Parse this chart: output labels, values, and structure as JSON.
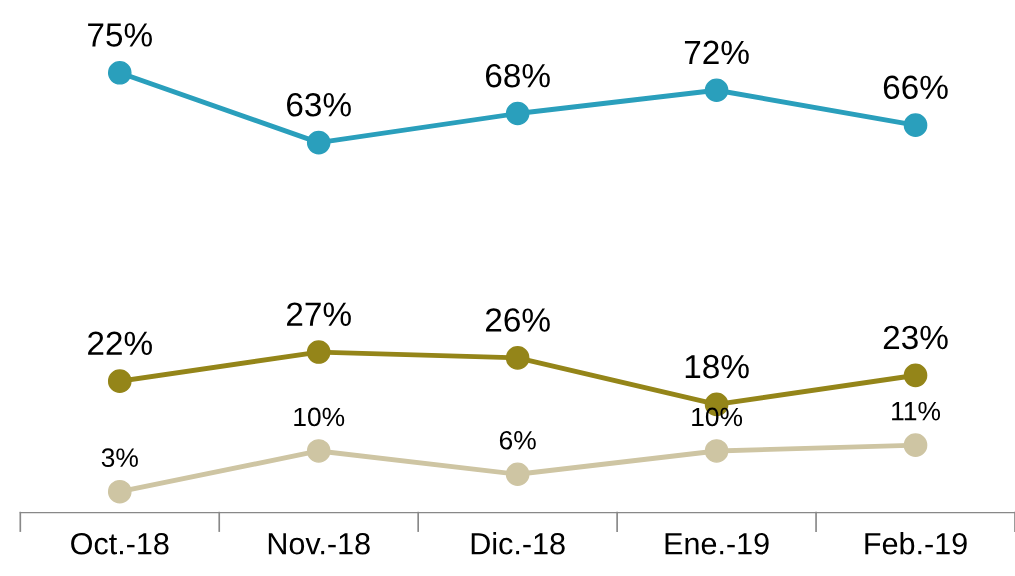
{
  "chart_data": {
    "type": "line",
    "categories": [
      "Oct.-18",
      "Nov.-18",
      "Dic.-18",
      "Ene.-19",
      "Feb.-19"
    ],
    "series": [
      {
        "color": "#2a9fbc",
        "values": [
          75,
          63,
          68,
          72,
          66
        ],
        "value_labels": [
          "75%",
          "63%",
          "68%",
          "72%",
          "66%"
        ]
      },
      {
        "color": "#948519",
        "values": [
          22,
          27,
          26,
          18,
          23
        ],
        "value_labels": [
          "22%",
          "27%",
          "26%",
          "18%",
          "23%"
        ]
      },
      {
        "color": "#cec5a3",
        "values": [
          3,
          10,
          6,
          10,
          11
        ],
        "value_labels": [
          "3%",
          "10%",
          "6%",
          "10%",
          "11%"
        ]
      }
    ],
    "marker": "circle",
    "line_style": "solid",
    "grid": false,
    "legend": false
  }
}
